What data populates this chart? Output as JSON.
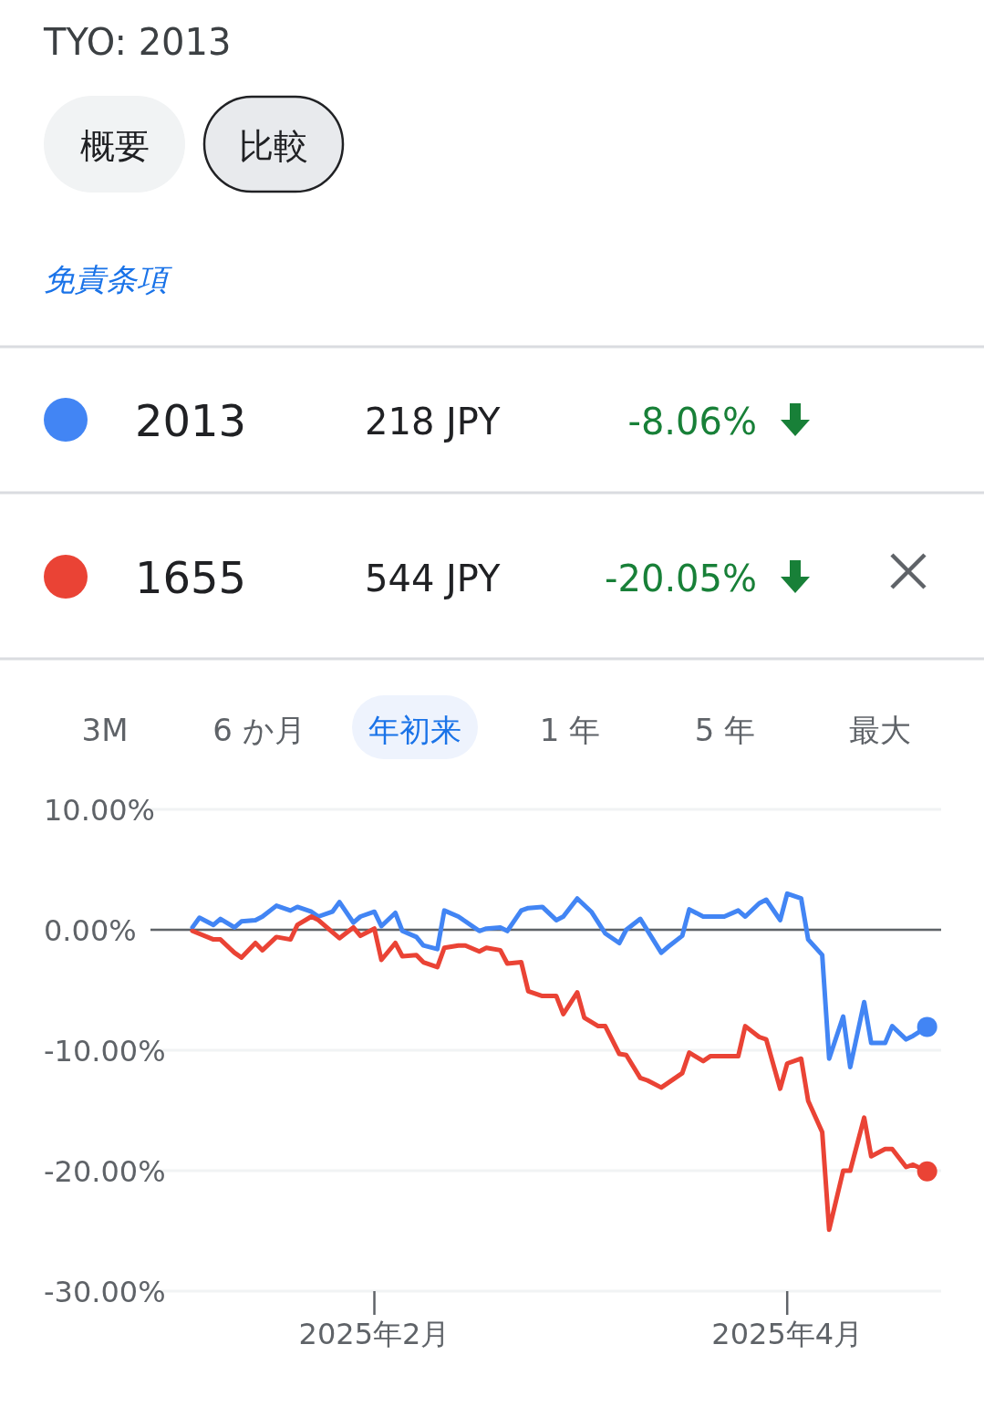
{
  "chart_data": {
    "type": "line",
    "title": "TYO: 2013",
    "annotations": [
      "概要",
      "比較",
      "免責条項",
      "218 JPY",
      "-8.06%",
      "544 JPY",
      "-20.05%",
      "3M",
      "6 か月",
      "年初来",
      "1 年",
      "5 年",
      "最大"
    ],
    "legend": "top",
    "grid": "y",
    "marker": "none",
    "line_style": "solid",
    "xlim": [
      "2024-12-31",
      "2025-04-23"
    ],
    "xticks": [
      {
        "value": "2025-02-01",
        "label": "2025年2月"
      },
      {
        "value": "2025-04-01",
        "label": "2025年4月"
      }
    ],
    "ylim": [
      -30,
      10
    ],
    "yticks": [
      {
        "value": 10,
        "label": "10.00%"
      },
      {
        "value": 0,
        "label": "0.00%"
      },
      {
        "value": -10,
        "label": "-10.00%"
      },
      {
        "value": -20,
        "label": "-20.00%"
      },
      {
        "value": -30,
        "label": "-30.00%"
      }
    ],
    "ref_lines": [
      {
        "axis": "y",
        "value": 0,
        "color": "#5f6368"
      }
    ],
    "series": [
      {
        "name": "2013",
        "color": "#4285f4",
        "x": [
          "2025-01-06",
          "2025-01-07",
          "2025-01-09",
          "2025-01-10",
          "2025-01-12",
          "2025-01-13",
          "2025-01-15",
          "2025-01-16",
          "2025-01-18",
          "2025-01-20",
          "2025-01-21",
          "2025-01-23",
          "2025-01-24",
          "2025-01-26",
          "2025-01-27",
          "2025-01-29",
          "2025-01-30",
          "2025-02-01",
          "2025-02-02",
          "2025-02-04",
          "2025-02-05",
          "2025-02-07",
          "2025-02-08",
          "2025-02-10",
          "2025-02-11",
          "2025-02-13",
          "2025-02-14",
          "2025-02-16",
          "2025-02-17",
          "2025-02-19",
          "2025-02-20",
          "2025-02-22",
          "2025-02-23",
          "2025-02-25",
          "2025-02-27",
          "2025-02-28",
          "2025-03-02",
          "2025-03-04",
          "2025-03-06",
          "2025-03-08",
          "2025-03-09",
          "2025-03-11",
          "2025-03-14",
          "2025-03-15",
          "2025-03-17",
          "2025-03-18",
          "2025-03-20",
          "2025-03-21",
          "2025-03-23",
          "2025-03-25",
          "2025-03-26",
          "2025-03-28",
          "2025-03-29",
          "2025-03-31",
          "2025-04-01",
          "2025-04-03",
          "2025-04-04",
          "2025-04-06",
          "2025-04-07",
          "2025-04-09",
          "2025-04-10",
          "2025-04-12",
          "2025-04-13",
          "2025-04-15",
          "2025-04-16",
          "2025-04-18",
          "2025-04-19",
          "2025-04-21"
        ],
        "values": [
          0.2,
          1.0,
          0.4,
          0.9,
          0.2,
          0.7,
          0.8,
          1.1,
          2.0,
          1.6,
          1.9,
          1.5,
          1.1,
          1.5,
          2.3,
          0.6,
          1.1,
          1.5,
          0.3,
          1.4,
          -0.1,
          -0.6,
          -1.3,
          -1.6,
          1.6,
          1.1,
          0.7,
          -0.1,
          0.1,
          0.2,
          -0.1,
          1.6,
          1.8,
          1.9,
          0.8,
          1.1,
          2.6,
          1.5,
          -0.3,
          -1.1,
          0.0,
          0.9,
          -1.9,
          -1.4,
          -0.5,
          1.7,
          1.1,
          1.1,
          1.1,
          1.6,
          1.1,
          2.2,
          2.5,
          0.8,
          3.0,
          2.6,
          -0.8,
          -2.1,
          -10.7,
          -7.2,
          -11.4,
          -6.0,
          -9.4,
          -9.4,
          -8.0,
          -9.1,
          -8.8,
          -8.06
        ]
      },
      {
        "name": "1655",
        "color": "#ea4335",
        "x": [
          "2025-01-06",
          "2025-01-09",
          "2025-01-10",
          "2025-01-12",
          "2025-01-13",
          "2025-01-15",
          "2025-01-16",
          "2025-01-18",
          "2025-01-20",
          "2025-01-21",
          "2025-01-23",
          "2025-01-24",
          "2025-01-26",
          "2025-01-27",
          "2025-01-29",
          "2025-01-30",
          "2025-02-01",
          "2025-02-02",
          "2025-02-04",
          "2025-02-05",
          "2025-02-07",
          "2025-02-08",
          "2025-02-10",
          "2025-02-11",
          "2025-02-13",
          "2025-02-14",
          "2025-02-16",
          "2025-02-17",
          "2025-02-19",
          "2025-02-20",
          "2025-02-22",
          "2025-02-23",
          "2025-02-25",
          "2025-02-27",
          "2025-02-28",
          "2025-03-02",
          "2025-03-03",
          "2025-03-05",
          "2025-03-06",
          "2025-03-08",
          "2025-03-09",
          "2025-03-11",
          "2025-03-12",
          "2025-03-14",
          "2025-03-15",
          "2025-03-17",
          "2025-03-18",
          "2025-03-20",
          "2025-03-21",
          "2025-03-25",
          "2025-03-26",
          "2025-03-28",
          "2025-03-29",
          "2025-03-31",
          "2025-04-01",
          "2025-04-03",
          "2025-04-04",
          "2025-04-06",
          "2025-04-07",
          "2025-04-09",
          "2025-04-10",
          "2025-04-12",
          "2025-04-13",
          "2025-04-15",
          "2025-04-16",
          "2025-04-18",
          "2025-04-19",
          "2025-04-21"
        ],
        "values": [
          -0.1,
          -0.8,
          -0.8,
          -1.9,
          -2.3,
          -1.1,
          -1.7,
          -0.6,
          -0.8,
          0.4,
          1.1,
          0.8,
          -0.2,
          -0.7,
          0.2,
          -0.5,
          0.1,
          -2.5,
          -1.1,
          -2.2,
          -2.1,
          -2.7,
          -3.1,
          -1.5,
          -1.3,
          -1.3,
          -1.8,
          -1.5,
          -1.7,
          -2.8,
          -2.7,
          -5.1,
          -5.5,
          -5.5,
          -7.0,
          -5.2,
          -7.3,
          -8.0,
          -8.0,
          -10.3,
          -10.4,
          -12.3,
          -12.5,
          -13.1,
          -12.7,
          -11.9,
          -10.2,
          -10.9,
          -10.5,
          -10.5,
          -8.0,
          -8.9,
          -9.1,
          -13.2,
          -11.1,
          -10.7,
          -14.2,
          -16.8,
          -24.9,
          -20.0,
          -20.0,
          -15.6,
          -18.8,
          -18.2,
          -18.2,
          -19.7,
          -19.5,
          -20.05
        ]
      }
    ]
  }
}
